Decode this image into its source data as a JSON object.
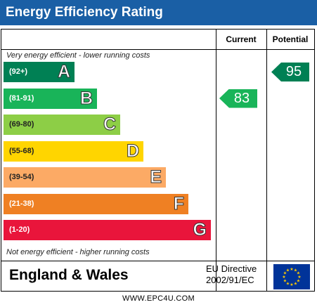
{
  "header": {
    "title": "Energy Efficiency Rating"
  },
  "columns": {
    "current": "Current",
    "potential": "Potential"
  },
  "captions": {
    "top": "Very energy efficient - lower running costs",
    "bottom": "Not energy efficient - higher running costs"
  },
  "footer": {
    "region": "England & Wales",
    "directive_line1": "EU Directive",
    "directive_line2": "2002/91/EC",
    "website": "WWW.EPC4U.COM"
  },
  "colors": {
    "header": "#1a5fa5",
    "A": "#008054",
    "B": "#19b459",
    "C": "#8dce46",
    "D": "#ffd500",
    "E": "#fcaa65",
    "F": "#ef8023",
    "G": "#e9153b",
    "eu_flag": "#003399",
    "eu_stars": "#ffcc00"
  },
  "chart_data": {
    "type": "bar",
    "title": "Energy Efficiency Rating",
    "bands": [
      {
        "letter": "A",
        "range": "(92+)"
      },
      {
        "letter": "B",
        "range": "(81-91)"
      },
      {
        "letter": "C",
        "range": "(69-80)"
      },
      {
        "letter": "D",
        "range": "(55-68)"
      },
      {
        "letter": "E",
        "range": "(39-54)"
      },
      {
        "letter": "F",
        "range": "(21-38)"
      },
      {
        "letter": "G",
        "range": "(1-20)"
      }
    ],
    "ratings": [
      {
        "name": "Current",
        "value": 83,
        "band": "B"
      },
      {
        "name": "Potential",
        "value": 95,
        "band": "A"
      }
    ]
  }
}
